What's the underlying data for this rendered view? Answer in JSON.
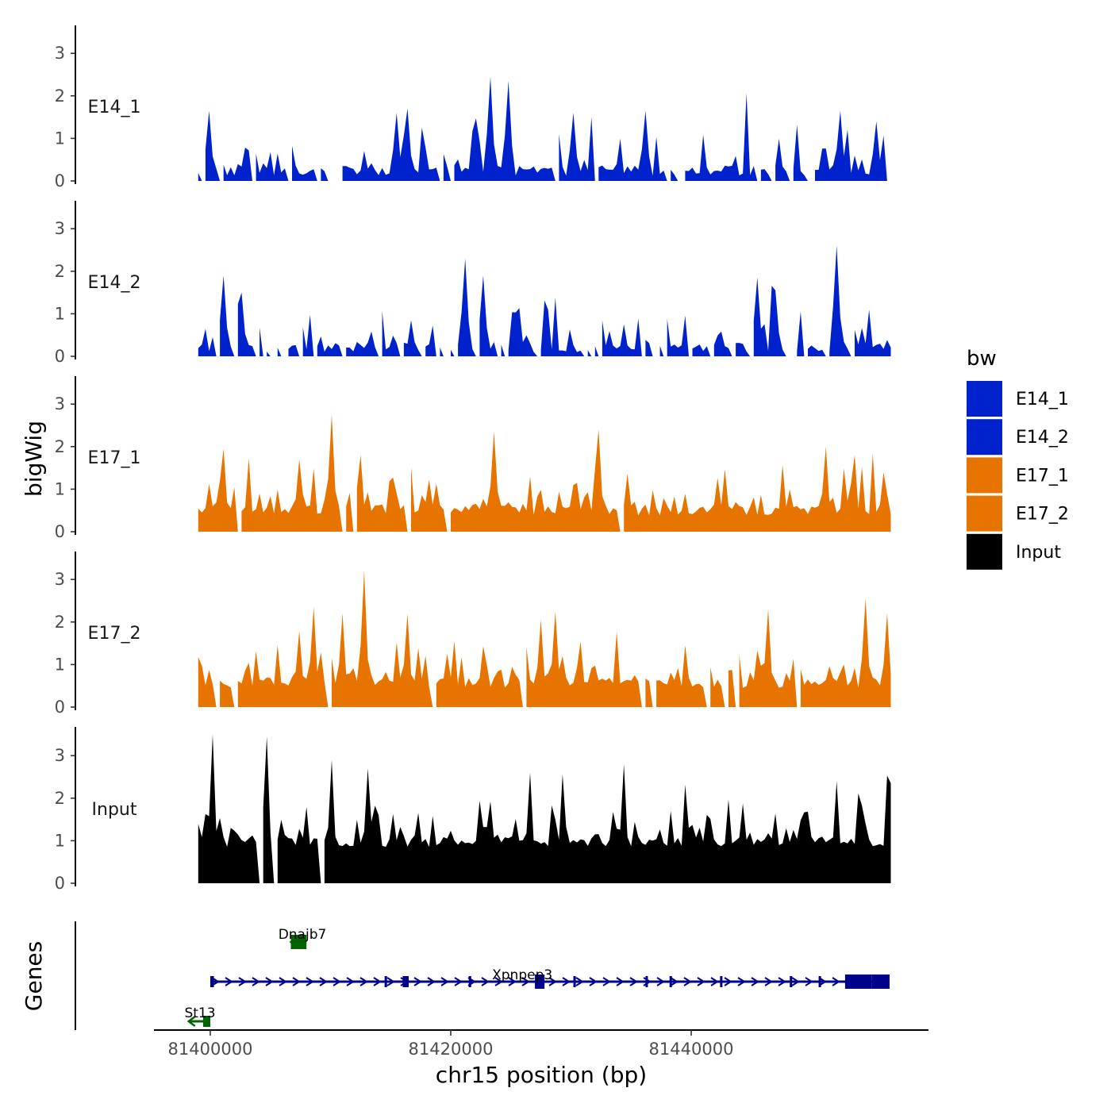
{
  "chart_data": {
    "type": "area",
    "chromosome": "chr15",
    "xlabel": "chr15 position (bp)",
    "ylabel": "bigWig",
    "genes_label": "Genes",
    "x_range": [
      81399000,
      81456500
    ],
    "xticks": [
      81400000,
      81420000,
      81440000
    ],
    "xtick_labels": [
      "81400000",
      "81420000",
      "81440000"
    ],
    "ylim": [
      0,
      3.6
    ],
    "yticks": [
      0,
      1,
      2,
      3
    ],
    "ytick_labels": [
      "0",
      "1",
      "2",
      "3"
    ],
    "bin_size": 300,
    "legend": {
      "title": "bw",
      "entries": [
        {
          "name": "E14_1",
          "color": "#0022cc"
        },
        {
          "name": "E14_2",
          "color": "#0022cc"
        },
        {
          "name": "E17_1",
          "color": "#e87400"
        },
        {
          "name": "E17_2",
          "color": "#e87400"
        },
        {
          "name": "Input",
          "color": "#000000"
        }
      ]
    },
    "series": [
      {
        "name": "E14_1",
        "label": "E14_1",
        "color": "#0022cc",
        "seed": 11,
        "base": 0.12,
        "peak_prob": 0.3,
        "peak_max": 1.1,
        "gap_prob": 0.13,
        "peaks": [
          {
            "x": 81400000,
            "y": 1.65
          },
          {
            "x": 81423300,
            "y": 2.45
          },
          {
            "x": 81424900,
            "y": 2.35
          },
          {
            "x": 81416400,
            "y": 1.7
          },
          {
            "x": 81430200,
            "y": 1.6
          },
          {
            "x": 81436100,
            "y": 1.65
          },
          {
            "x": 81452300,
            "y": 1.65
          },
          {
            "x": 81415500,
            "y": 1.6
          },
          {
            "x": 81455500,
            "y": 1.4
          }
        ]
      },
      {
        "name": "E14_2",
        "label": "E14_2",
        "color": "#0022cc",
        "seed": 23,
        "base": 0.1,
        "peak_prob": 0.32,
        "peak_max": 1.1,
        "gap_prob": 0.16,
        "peaks": [
          {
            "x": 81401200,
            "y": 1.9
          },
          {
            "x": 81421200,
            "y": 2.3
          },
          {
            "x": 81422800,
            "y": 1.9
          },
          {
            "x": 81452100,
            "y": 2.6
          },
          {
            "x": 81445400,
            "y": 1.85
          },
          {
            "x": 81402500,
            "y": 1.5
          },
          {
            "x": 81446900,
            "y": 1.55
          }
        ]
      },
      {
        "name": "E17_1",
        "label": "E17_1",
        "color": "#e87400",
        "seed": 37,
        "base": 0.38,
        "peak_prob": 0.42,
        "peak_max": 1.0,
        "gap_prob": 0.05,
        "peaks": [
          {
            "x": 81410100,
            "y": 2.75
          },
          {
            "x": 81423500,
            "y": 2.35
          },
          {
            "x": 81432400,
            "y": 2.4
          },
          {
            "x": 81451100,
            "y": 2.0
          },
          {
            "x": 81401200,
            "y": 1.95
          },
          {
            "x": 81412500,
            "y": 1.8
          },
          {
            "x": 81407500,
            "y": 1.7
          }
        ]
      },
      {
        "name": "E17_2",
        "label": "E17_2",
        "color": "#e87400",
        "seed": 53,
        "base": 0.45,
        "peak_prob": 0.42,
        "peak_max": 1.0,
        "gap_prob": 0.05,
        "peaks": [
          {
            "x": 81412700,
            "y": 3.2
          },
          {
            "x": 81408600,
            "y": 2.35
          },
          {
            "x": 81410900,
            "y": 2.2
          },
          {
            "x": 81416400,
            "y": 2.2
          },
          {
            "x": 81427600,
            "y": 2.05
          },
          {
            "x": 81428800,
            "y": 2.25
          },
          {
            "x": 81446300,
            "y": 2.3
          },
          {
            "x": 81454600,
            "y": 2.55
          },
          {
            "x": 81456200,
            "y": 2.2
          }
        ]
      },
      {
        "name": "Input",
        "label": "Input",
        "color": "#000000",
        "seed": 71,
        "base": 0.85,
        "peak_prob": 0.45,
        "peak_max": 1.1,
        "gap_prob": 0.02,
        "peaks": [
          {
            "x": 81400200,
            "y": 3.5
          },
          {
            "x": 81404600,
            "y": 3.45
          },
          {
            "x": 81410000,
            "y": 2.9
          },
          {
            "x": 81434500,
            "y": 2.8
          },
          {
            "x": 81413200,
            "y": 2.7
          },
          {
            "x": 81426500,
            "y": 2.6
          },
          {
            "x": 81452000,
            "y": 2.4
          },
          {
            "x": 81456500,
            "y": 2.35
          }
        ]
      }
    ],
    "genes": [
      {
        "name": "Dnajb7",
        "start": 81406700,
        "end": 81408000,
        "strand": "-",
        "color": "#006400",
        "row": 0,
        "exons": [
          [
            81406700,
            81408000
          ]
        ]
      },
      {
        "name": "Xpnpep3",
        "start": 81400000,
        "end": 81456500,
        "strand": "+",
        "color": "#00008b",
        "row": 1,
        "label_at": 81427800,
        "exons": [
          [
            81400000,
            81400300
          ],
          [
            81414500,
            81414650
          ],
          [
            81416000,
            81416500
          ],
          [
            81421500,
            81421650
          ],
          [
            81427000,
            81427800
          ],
          [
            81430200,
            81430400
          ],
          [
            81436200,
            81436350
          ],
          [
            81438200,
            81438350
          ],
          [
            81442400,
            81442550
          ],
          [
            81448200,
            81448350
          ],
          [
            81450600,
            81450750
          ],
          [
            81452800,
            81455000
          ],
          [
            81455000,
            81456500
          ]
        ]
      },
      {
        "name": "St13",
        "start": 81398200,
        "end": 81400000,
        "strand": "-",
        "color": "#006400",
        "row": 2,
        "exons": [
          [
            81399400,
            81400000
          ]
        ]
      }
    ]
  }
}
